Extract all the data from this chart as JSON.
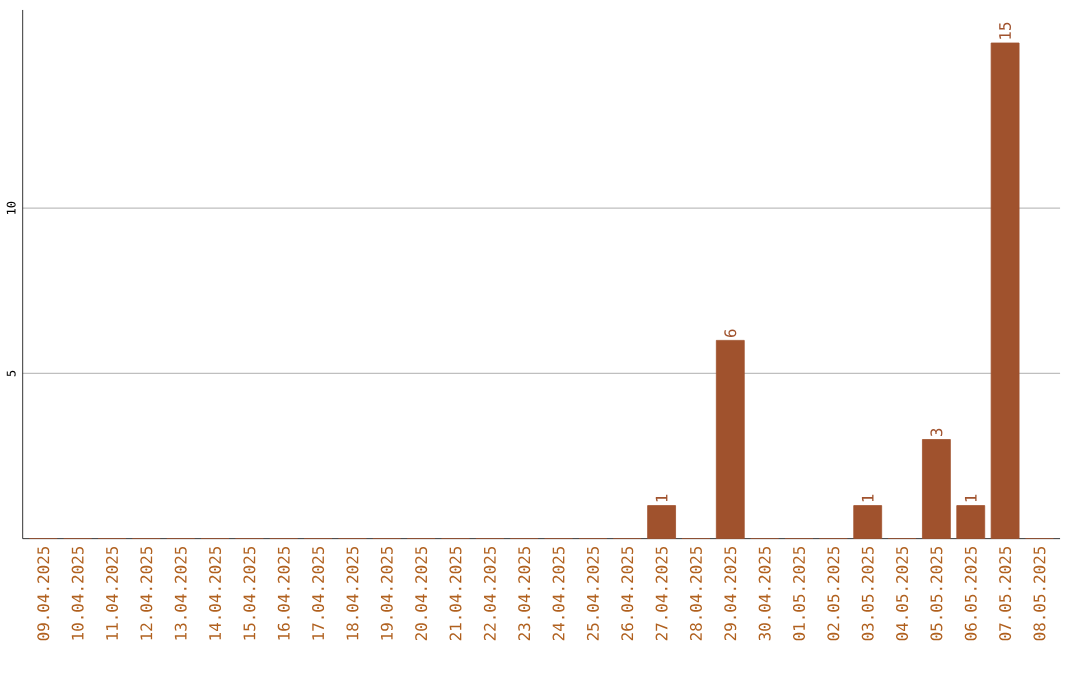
{
  "chart_data": {
    "type": "bar",
    "categories": [
      "09.04.2025",
      "10.04.2025",
      "11.04.2025",
      "12.04.2025",
      "13.04.2025",
      "14.04.2025",
      "15.04.2025",
      "16.04.2025",
      "17.04.2025",
      "18.04.2025",
      "19.04.2025",
      "20.04.2025",
      "21.04.2025",
      "22.04.2025",
      "23.04.2025",
      "24.04.2025",
      "25.04.2025",
      "26.04.2025",
      "27.04.2025",
      "28.04.2025",
      "29.04.2025",
      "30.04.2025",
      "01.05.2025",
      "02.05.2025",
      "03.05.2025",
      "04.05.2025",
      "05.05.2025",
      "06.05.2025",
      "07.05.2025",
      "08.05.2025"
    ],
    "values": [
      0,
      0,
      0,
      0,
      0,
      0,
      0,
      0,
      0,
      0,
      0,
      0,
      0,
      0,
      0,
      0,
      0,
      0,
      1,
      0,
      6,
      0,
      0,
      0,
      1,
      0,
      3,
      1,
      15,
      0
    ],
    "value_labels": [
      null,
      null,
      null,
      null,
      null,
      null,
      null,
      null,
      null,
      null,
      null,
      null,
      null,
      null,
      null,
      null,
      null,
      null,
      "1",
      null,
      "6",
      null,
      null,
      null,
      "1",
      null,
      "3",
      "1",
      "15",
      null
    ],
    "color": "#a0522d",
    "ylim": [
      0,
      16
    ],
    "yticks": [
      5,
      10
    ],
    "grid": "y"
  }
}
